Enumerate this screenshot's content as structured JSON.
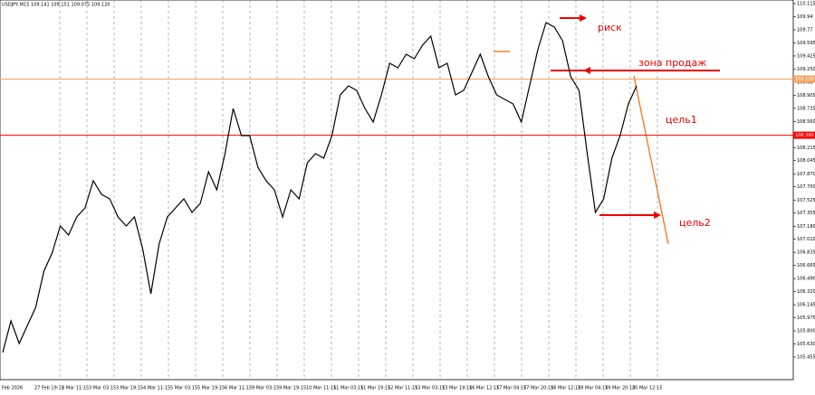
{
  "chart_data": {
    "type": "line",
    "header": "USDJPY,M15 109.141 109.151 109.075 109.120",
    "series": [
      {
        "name": "USDJPY,M15",
        "color": "#000000",
        "values": [
          105.515,
          105.932,
          105.634,
          105.872,
          106.111,
          106.587,
          106.826,
          107.183,
          107.064,
          107.302,
          107.422,
          107.779,
          107.6,
          107.541,
          107.302,
          107.183,
          107.302,
          106.885,
          106.289,
          106.945,
          107.302,
          107.422,
          107.541,
          107.362,
          107.481,
          107.898,
          107.66,
          108.137,
          108.733,
          108.375,
          108.375,
          107.958,
          107.779,
          107.66,
          107.302,
          107.66,
          107.541,
          108.018,
          108.137,
          108.077,
          108.375,
          108.912,
          109.031,
          108.971,
          108.733,
          108.554,
          108.912,
          109.329,
          109.269,
          109.448,
          109.388,
          109.567,
          109.686,
          109.269,
          109.329,
          108.912,
          108.971,
          109.209,
          109.448,
          109.15,
          108.912,
          108.852,
          108.792,
          108.554,
          109.031,
          109.507,
          109.865,
          109.805,
          109.627,
          109.15,
          108.971,
          108.137,
          107.362,
          107.541,
          108.077,
          108.375,
          108.792,
          109.031
        ]
      }
    ],
    "ylim": [
      105.157,
      110.163
    ],
    "yticks": [
      {
        "value": 110.115,
        "label": "110.115"
      },
      109.94,
      109.77,
      109.595,
      109.425,
      {
        "value": 109.25,
        "label": "109.250"
      },
      109.08,
      108.905,
      108.735,
      {
        "value": 108.56,
        "label": "108.560"
      },
      108.39,
      108.215,
      108.045,
      {
        "value": 107.87,
        "label": "107.870"
      },
      {
        "value": 107.7,
        "label": "107.700"
      },
      107.525,
      107.355,
      {
        "value": 107.18,
        "label": "107.180"
      },
      {
        "value": 107.01,
        "label": "107.010"
      },
      106.835,
      106.665,
      {
        "value": 106.49,
        "label": "106.490"
      },
      {
        "value": 106.32,
        "label": "106.320"
      },
      106.145,
      105.975,
      {
        "value": 105.8,
        "label": "105.800"
      },
      {
        "value": 105.63,
        "label": "105.630"
      },
      105.455
    ],
    "xtick_labels": [
      "Feb 2026",
      "27 Feb 19:15",
      "2 Mar 11:15",
      "3 Mar 03:15",
      "3 Mar 19:15",
      "4 Mar 11:15",
      "5 Mar 03:15",
      "5 Mar 19:15",
      "6 Mar 11:15",
      "9 Mar 03:15",
      "9 Mar 19:15",
      "10 Mar 11:15",
      "11 Mar 03:15",
      "11 Mar 19:15",
      "12 Mar 11:15",
      "13 Mar 03:15",
      "13 Mar 19:15",
      "16 Mar 12:15",
      "17 Mar 04:15",
      "17 Mar 20:15",
      "18 Mar 12:15",
      "19 Mar 04:15",
      "19 Mar 20:15",
      "20 Mar 12:15"
    ],
    "hlines": [
      {
        "value": 109.12,
        "label": "109.120",
        "color": "#f4a460"
      },
      {
        "value": 108.38,
        "label": "108.380",
        "color": "#ff0000"
      }
    ],
    "annotations": [
      "риск",
      "зона продаж",
      "цель1",
      "цель2"
    ],
    "grid": true
  }
}
